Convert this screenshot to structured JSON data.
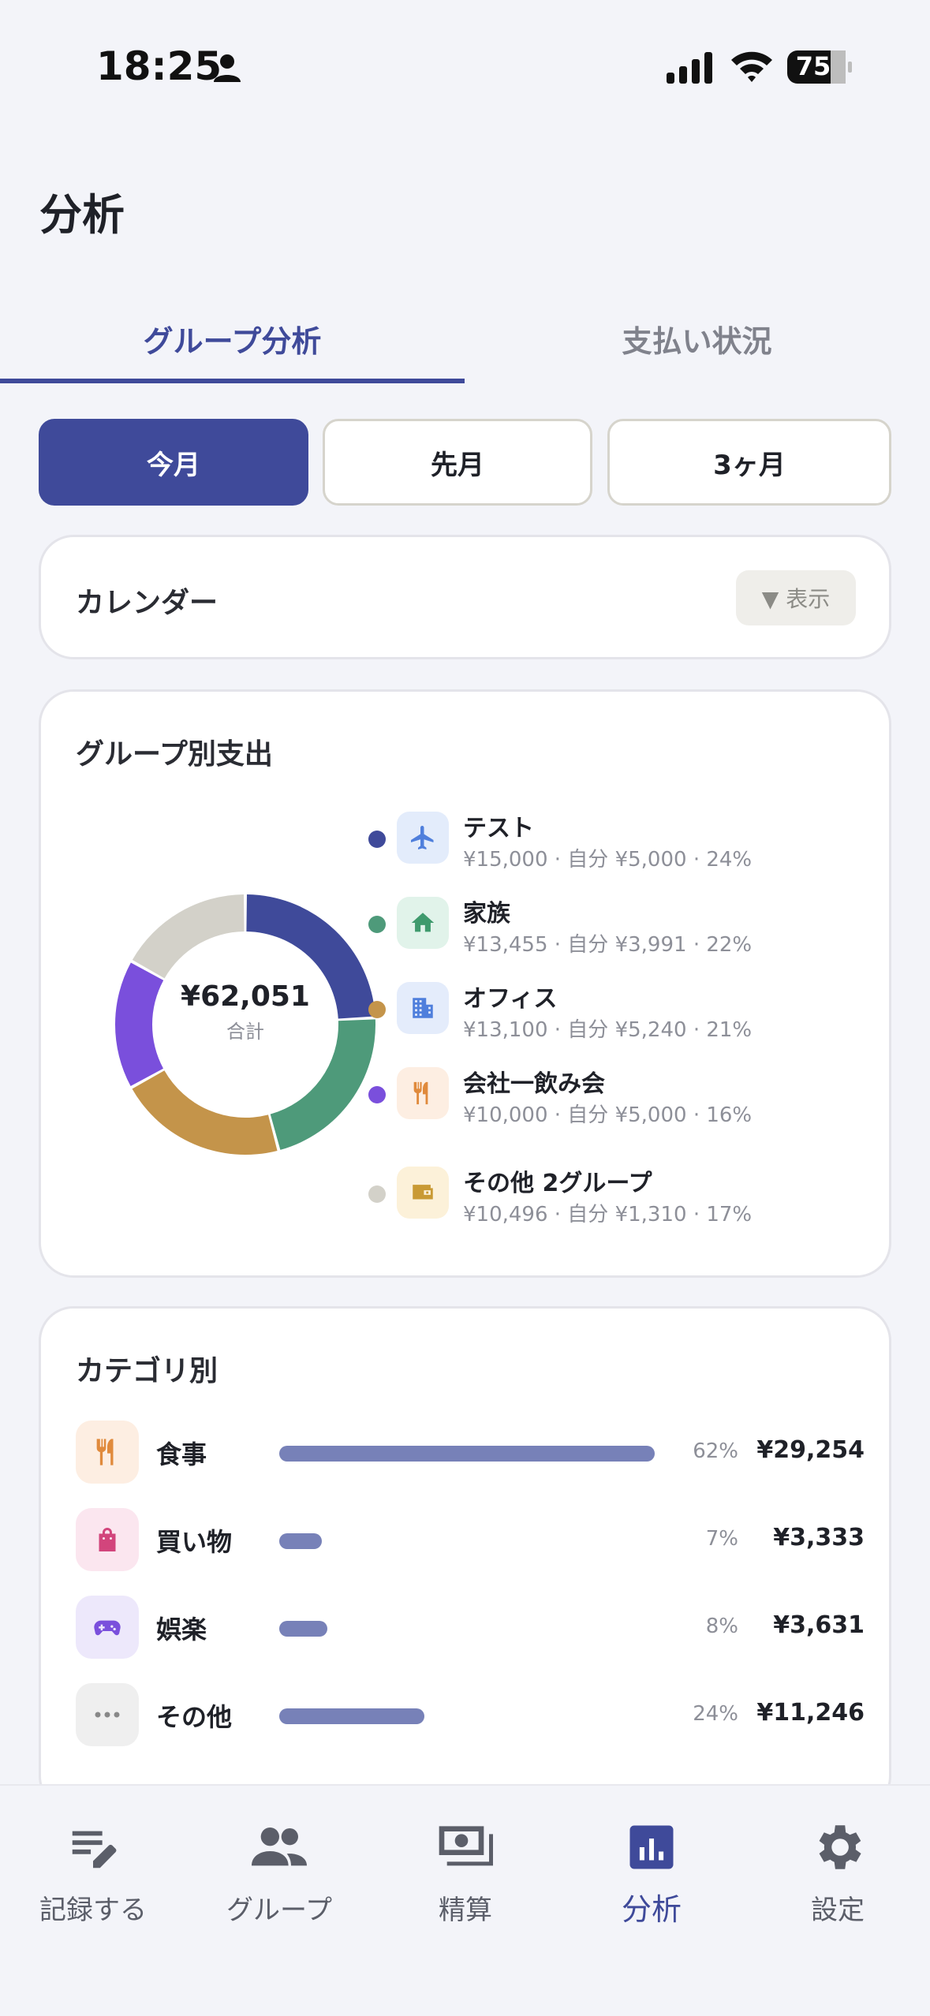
{
  "status_bar": {
    "time": "18:25",
    "battery": "75"
  },
  "page_title": "分析",
  "tabs": [
    {
      "label": "グループ分析",
      "active": true
    },
    {
      "label": "支払い状況",
      "active": false
    }
  ],
  "periods": [
    {
      "label": "今月",
      "selected": true
    },
    {
      "label": "先月",
      "selected": false
    },
    {
      "label": "3ヶ月",
      "selected": false
    }
  ],
  "calendar": {
    "title": "カレンダー",
    "toggle_label": "▼ 表示"
  },
  "group_spending": {
    "title": "グループ別支出",
    "total_amount": "¥62,051",
    "total_label": "合計",
    "groups": [
      {
        "name": "テスト",
        "detail": "¥15,000 · 自分 ¥5,000 · 24%",
        "color": "#3f4a9a",
        "icon": "airplane-icon",
        "icon_bg": "#e3ecfb",
        "icon_color": "#4f7fdc"
      },
      {
        "name": "家族",
        "detail": "¥13,455 · 自分 ¥3,991 · 22%",
        "color": "#4e9a7a",
        "icon": "home-icon",
        "icon_bg": "#e1f3ea",
        "icon_color": "#3f9a6d"
      },
      {
        "name": "オフィス",
        "detail": "¥13,100 · 自分 ¥5,240 · 21%",
        "color": "#c4944a",
        "icon": "building-icon",
        "icon_bg": "#e4ecfb",
        "icon_color": "#4f7fdc"
      },
      {
        "name": "会社一飲み会",
        "detail": "¥10,000 · 自分 ¥5,000 · 16%",
        "color": "#7a4fdc",
        "icon": "utensils-icon",
        "icon_bg": "#fdeee2",
        "icon_color": "#e08a3c"
      },
      {
        "name": "その他 2グループ",
        "detail": "¥10,496 · 自分 ¥1,310 · 17%",
        "color": "#d3d1c9",
        "icon": "wallet-icon",
        "icon_bg": "#fcf1d9",
        "icon_color": "#c99a34"
      }
    ]
  },
  "chart_data": {
    "type": "pie",
    "donut": true,
    "center_label": "¥62,051",
    "categories": [
      "テスト",
      "家族",
      "オフィス",
      "会社一飲み会",
      "その他 2グループ"
    ],
    "values": [
      15000,
      13455,
      13100,
      10000,
      10496
    ],
    "percentages": [
      24,
      22,
      21,
      16,
      17
    ],
    "colors": [
      "#3f4a9a",
      "#4e9a7a",
      "#c4944a",
      "#7a4fdc",
      "#d3d1c9"
    ]
  },
  "categories_card": {
    "title": "カテゴリ別",
    "items": [
      {
        "name": "食事",
        "pct_label": "62%",
        "pct": 62,
        "amount": "¥29,254",
        "icon": "utensils-icon",
        "icon_bg": "#fdeee2",
        "icon_color": "#e08a3c"
      },
      {
        "name": "買い物",
        "pct_label": "7%",
        "pct": 7,
        "amount": "¥3,333",
        "icon": "shopping-bag-icon",
        "icon_bg": "#fbe6ef",
        "icon_color": "#d2457c"
      },
      {
        "name": "娯楽",
        "pct_label": "8%",
        "pct": 8,
        "amount": "¥3,631",
        "icon": "gamepad-icon",
        "icon_bg": "#ede8fb",
        "icon_color": "#7a4fdc"
      },
      {
        "name": "その他",
        "pct_label": "24%",
        "pct": 24,
        "amount": "¥11,246",
        "icon": "more-icon",
        "icon_bg": "#efefef",
        "icon_color": "#888888"
      }
    ]
  },
  "bottom_nav": [
    {
      "label": "記録する",
      "icon": "edit-list-icon",
      "active": false
    },
    {
      "label": "グループ",
      "icon": "people-icon",
      "active": false
    },
    {
      "label": "精算",
      "icon": "money-icon",
      "active": false
    },
    {
      "label": "分析",
      "icon": "chart-icon",
      "active": true
    },
    {
      "label": "設定",
      "icon": "gear-icon",
      "active": false
    }
  ],
  "colors": {
    "accent": "#3f4a9a",
    "background": "#f3f4f9",
    "bar": "#7781b8"
  }
}
